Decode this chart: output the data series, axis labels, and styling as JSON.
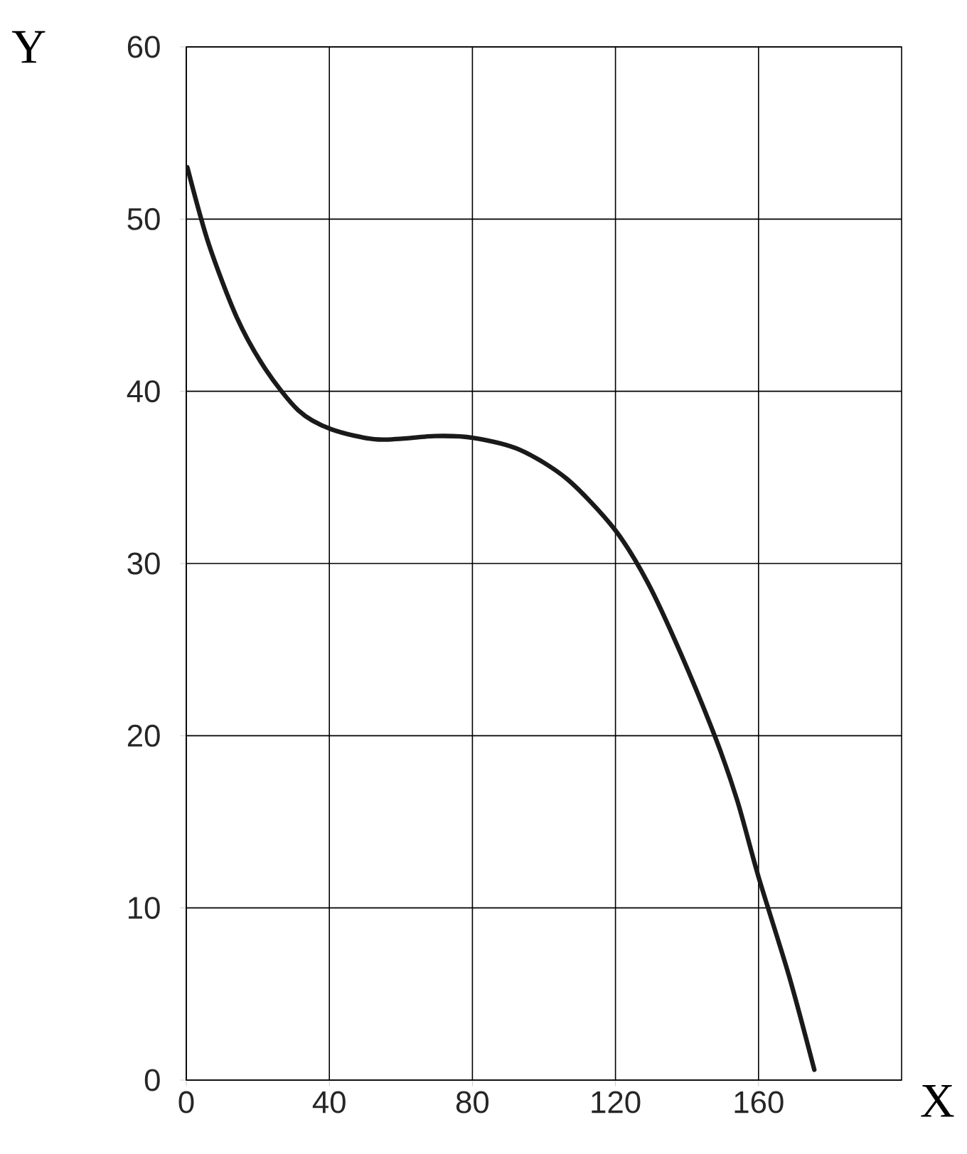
{
  "chart_data": {
    "type": "line",
    "xlabel": "X",
    "ylabel": "Y",
    "xlim": [
      0,
      200
    ],
    "ylim": [
      0,
      60
    ],
    "xticks": [
      0,
      40,
      80,
      120,
      160
    ],
    "yticks": [
      0,
      10,
      20,
      30,
      40,
      50,
      60
    ],
    "grid": true,
    "marker": "none",
    "line_style": "solid",
    "series": [
      {
        "color": "#1a1a1a",
        "x": [
          0.3,
          6.2,
          14.1,
          22.1,
          31.3,
          40.5,
          53.7,
          69.6,
          80.1,
          93.3,
          106.5,
          119.7,
          129.0,
          138.2,
          148.1,
          154.1,
          160.0,
          168.6,
          175.6
        ],
        "values": [
          53.0,
          48.6,
          44.3,
          41.3,
          38.9,
          37.8,
          37.2,
          37.4,
          37.3,
          36.6,
          34.9,
          32.0,
          28.9,
          24.8,
          19.8,
          16.2,
          11.8,
          6.0,
          0.6
        ]
      }
    ]
  }
}
